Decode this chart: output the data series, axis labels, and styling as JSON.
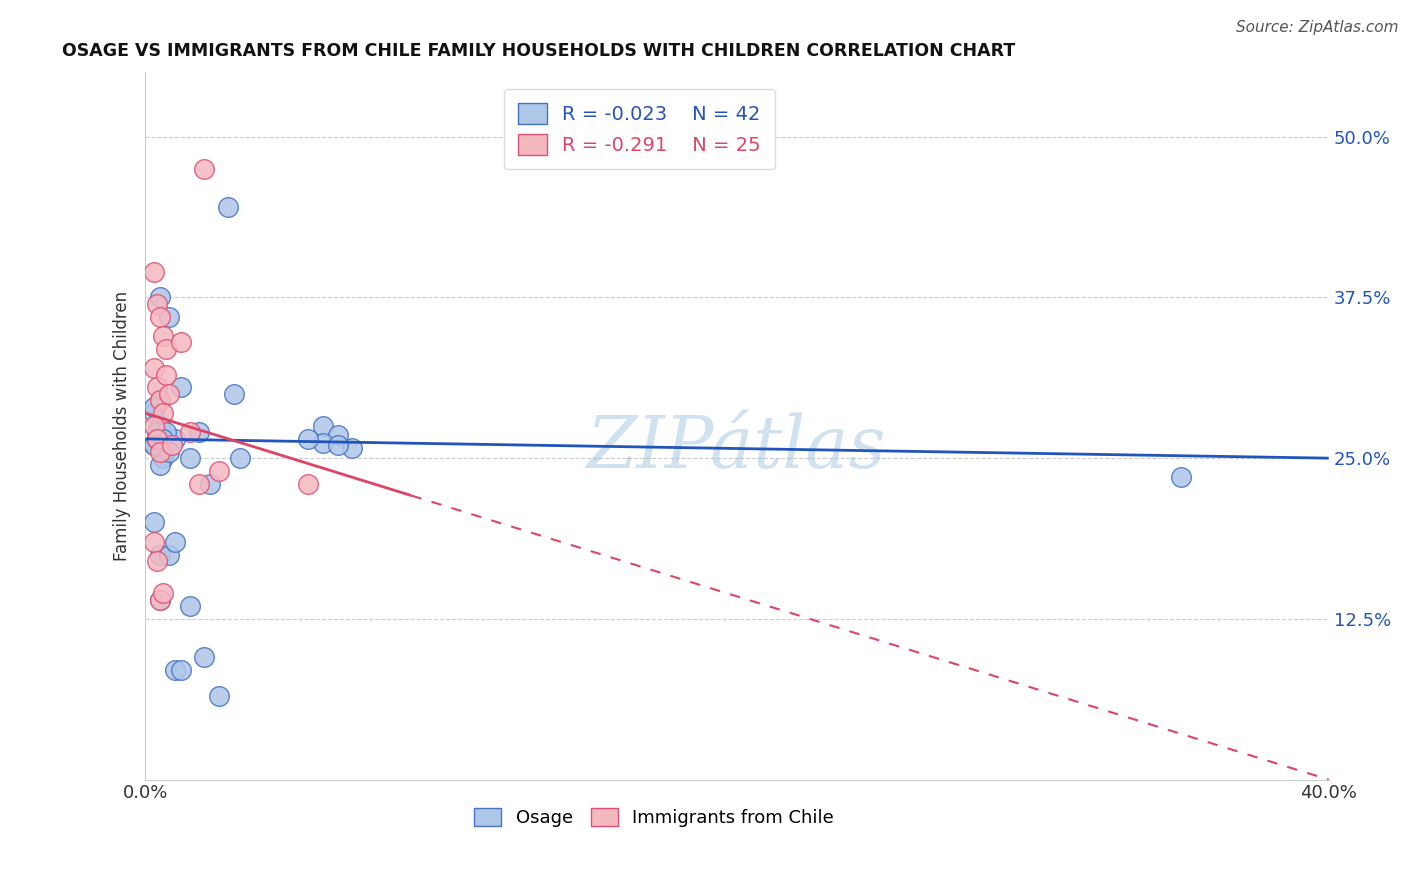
{
  "title": "OSAGE VS IMMIGRANTS FROM CHILE FAMILY HOUSEHOLDS WITH CHILDREN CORRELATION CHART",
  "source": "Source: ZipAtlas.com",
  "ylabel": "Family Households with Children",
  "xlim": [
    0.0,
    0.4
  ],
  "ylim": [
    0.0,
    0.55
  ],
  "yticks": [
    0.0,
    0.125,
    0.25,
    0.375,
    0.5
  ],
  "ytick_labels": [
    "",
    "12.5%",
    "25.0%",
    "37.5%",
    "50.0%"
  ],
  "xticks": [
    0.0,
    0.05,
    0.1,
    0.15,
    0.2,
    0.25,
    0.3,
    0.35,
    0.4
  ],
  "xtick_labels": [
    "0.0%",
    "",
    "",
    "",
    "",
    "",
    "",
    "",
    "40.0%"
  ],
  "osage_color": "#aec6e8",
  "chile_color": "#f4b8c1",
  "osage_edge": "#4472c4",
  "chile_edge": "#e05070",
  "line_osage_color": "#2255bb",
  "line_chile_color": "#dd4466",
  "legend_R_osage": "-0.023",
  "legend_N_osage": "42",
  "legend_R_chile": "-0.291",
  "legend_N_chile": "25",
  "watermark": "ZIPátlas",
  "background_color": "#ffffff",
  "osage_x": [
    0.005,
    0.008,
    0.005,
    0.003,
    0.003,
    0.005,
    0.004,
    0.004,
    0.003,
    0.006,
    0.01,
    0.006,
    0.012,
    0.003,
    0.005,
    0.015,
    0.022,
    0.032,
    0.003,
    0.005,
    0.008,
    0.01,
    0.018,
    0.015,
    0.028,
    0.03,
    0.06,
    0.065,
    0.06,
    0.07,
    0.065,
    0.055,
    0.01,
    0.012,
    0.02,
    0.35,
    0.025,
    0.005,
    0.007,
    0.004,
    0.006,
    0.008
  ],
  "osage_y": [
    0.375,
    0.36,
    0.295,
    0.285,
    0.29,
    0.275,
    0.27,
    0.265,
    0.26,
    0.25,
    0.265,
    0.255,
    0.305,
    0.26,
    0.245,
    0.25,
    0.23,
    0.25,
    0.2,
    0.175,
    0.175,
    0.185,
    0.27,
    0.135,
    0.445,
    0.3,
    0.275,
    0.268,
    0.262,
    0.258,
    0.26,
    0.265,
    0.085,
    0.085,
    0.095,
    0.235,
    0.065,
    0.14,
    0.27,
    0.265,
    0.265,
    0.255
  ],
  "chile_x": [
    0.02,
    0.003,
    0.004,
    0.005,
    0.006,
    0.007,
    0.003,
    0.004,
    0.005,
    0.006,
    0.003,
    0.004,
    0.005,
    0.007,
    0.008,
    0.009,
    0.012,
    0.015,
    0.018,
    0.025,
    0.055,
    0.003,
    0.004,
    0.005,
    0.006
  ],
  "chile_y": [
    0.475,
    0.395,
    0.37,
    0.36,
    0.345,
    0.335,
    0.32,
    0.305,
    0.295,
    0.285,
    0.275,
    0.265,
    0.255,
    0.315,
    0.3,
    0.26,
    0.34,
    0.27,
    0.23,
    0.24,
    0.23,
    0.185,
    0.17,
    0.14,
    0.145
  ],
  "osage_line_x0": 0.0,
  "osage_line_x1": 0.4,
  "osage_line_y0": 0.265,
  "osage_line_y1": 0.25,
  "chile_line_x0": 0.0,
  "chile_line_x1": 0.4,
  "chile_line_y0": 0.285,
  "chile_line_y1": 0.0
}
